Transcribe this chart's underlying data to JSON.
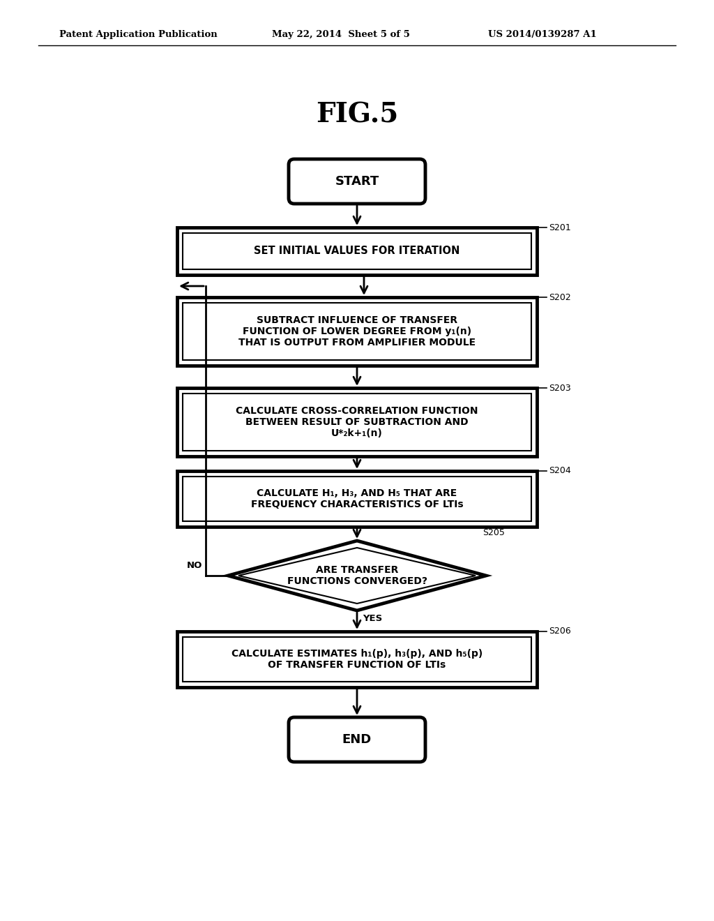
{
  "bg_color": "#ffffff",
  "header_left": "Patent Application Publication",
  "header_mid": "May 22, 2014  Sheet 5 of 5",
  "header_right": "US 2014/0139287 A1",
  "fig_title": "FIG.5",
  "start_text": "START",
  "end_text": "END",
  "s201_text": "SET INITIAL VALUES FOR ITERATION",
  "s201_label": "S201",
  "s202_text": "SUBTRACT INFLUENCE OF TRANSFER\nFUNCTION OF LOWER DEGREE FROM y₁(n)\nTHAT IS OUTPUT FROM AMPLIFIER MODULE",
  "s202_label": "S202",
  "s203_text": "CALCULATE CROSS-CORRELATION FUNCTION\nBETWEEN RESULT OF SUBTRACTION AND\nU*₂k+₁(n)",
  "s203_label": "S203",
  "s204_text": "CALCULATE H₁, H₃, AND H₅ THAT ARE\nFREQUENCY CHARACTERISTICS OF LTIs",
  "s204_label": "S204",
  "s205_text": "ARE TRANSFER\nFUNCTIONS CONVERGED?",
  "s205_label": "S205",
  "s205_yes": "YES",
  "s205_no": "NO",
  "s206_text": "CALCULATE ESTIMATES h₁(p), h₃(p), AND h₅(p)\nOF TRANSFER FUNCTION OF LTIs",
  "s206_label": "S206"
}
